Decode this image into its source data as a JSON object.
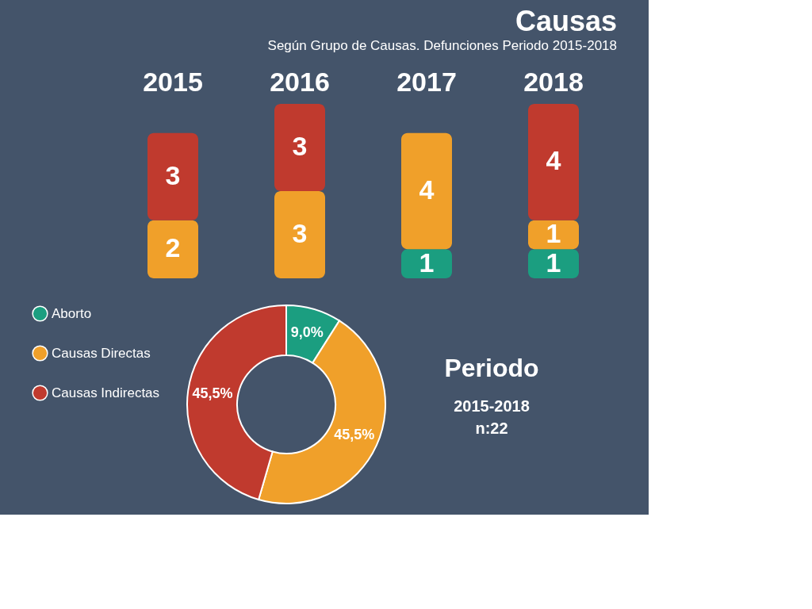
{
  "chart_data": [
    {
      "type": "bar",
      "title": "Causas",
      "subtitle": "Según Grupo de Causas. Defunciones Periodo 2015-2018",
      "categories": [
        "2015",
        "2016",
        "2017",
        "2018"
      ],
      "stacked": true,
      "data_labels": true,
      "series": [
        {
          "color": "#1b9e80",
          "values": [
            null,
            null,
            1,
            1
          ]
        },
        {
          "color": "#f0a02a",
          "values": [
            2,
            3,
            4,
            1
          ]
        },
        {
          "color": "#c03a2e",
          "values": [
            3,
            3,
            null,
            4
          ]
        }
      ]
    },
    {
      "type": "donut",
      "categories": [
        "Aborto",
        "Causas Directas",
        "Causas Indirectas"
      ],
      "values": [
        9.0,
        45.5,
        45.5
      ],
      "colors": [
        "#1b9e80",
        "#f0a02a",
        "#c03a2e"
      ],
      "value_labels": [
        "9,0%",
        "45,5%",
        "45,5%"
      ],
      "legend": "left",
      "annotations": [
        "Periodo",
        "2015-2018",
        "n:22"
      ]
    }
  ]
}
